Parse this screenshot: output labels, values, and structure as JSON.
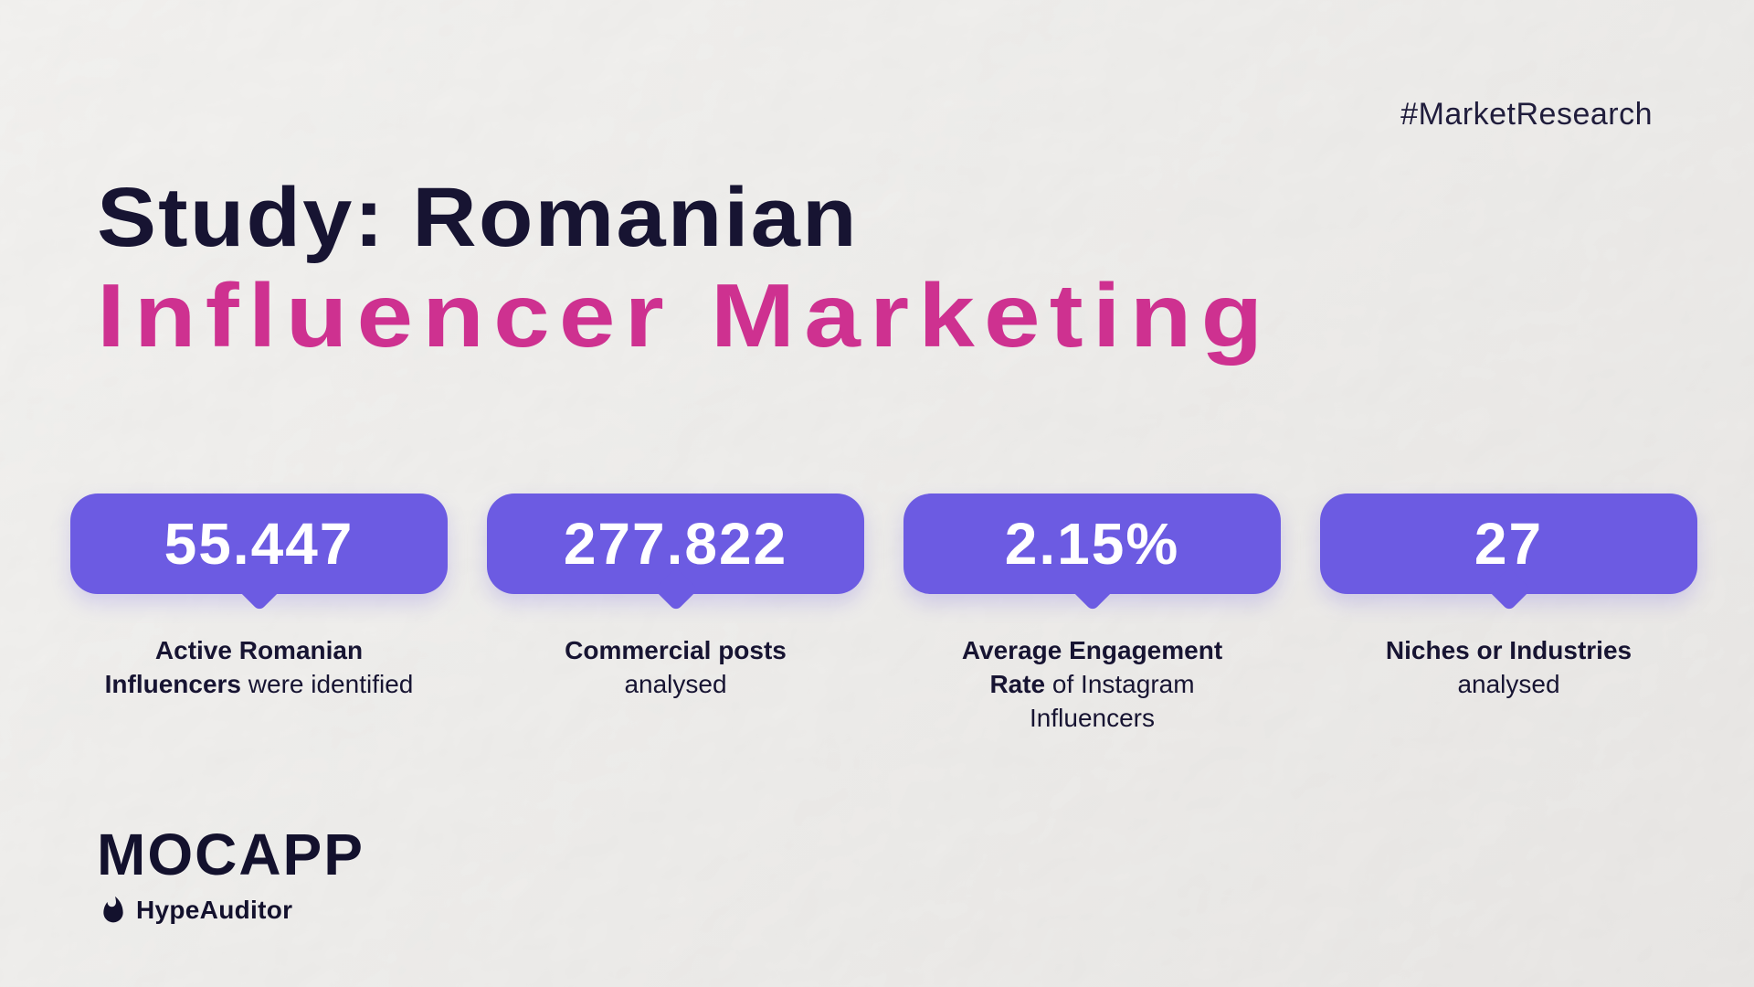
{
  "hashtag": "#MarketResearch",
  "title": {
    "line1": "Study: Romanian",
    "line2": "Influencer Marketing"
  },
  "stats": [
    {
      "value": "55.447",
      "lines": [
        [
          {
            "text": "Active Romanian",
            "bold": true
          }
        ],
        [
          {
            "text": "Influencers",
            "bold": true
          },
          {
            "text": " were identified",
            "bold": false
          }
        ]
      ]
    },
    {
      "value": "277.822",
      "lines": [
        [
          {
            "text": "Commercial posts",
            "bold": true
          }
        ],
        [
          {
            "text": "analysed",
            "bold": false
          }
        ]
      ]
    },
    {
      "value": "2.15%",
      "lines": [
        [
          {
            "text": "Average Engagement",
            "bold": true
          }
        ],
        [
          {
            "text": "Rate",
            "bold": true
          },
          {
            "text": " of Instagram",
            "bold": false
          }
        ],
        [
          {
            "text": "Influencers",
            "bold": false
          }
        ]
      ]
    },
    {
      "value": "27",
      "lines": [
        [
          {
            "text": "Niches or Industries",
            "bold": true
          }
        ],
        [
          {
            "text": "analysed",
            "bold": false
          }
        ]
      ]
    }
  ],
  "footer": {
    "brand": "MOCAPP",
    "partner": "HypeAuditor"
  },
  "colors": {
    "accent_purple": "#6c5be2",
    "accent_pink": "#ce3190",
    "text_navy": "#171432",
    "stat_value_text": "#ffffff"
  }
}
